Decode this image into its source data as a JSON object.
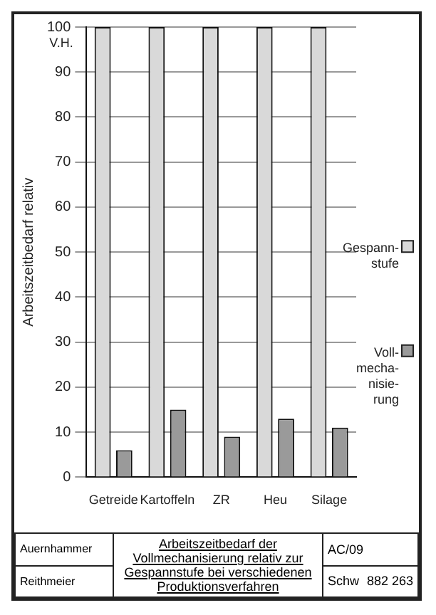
{
  "chart_data": {
    "type": "bar",
    "title": "Arbeitszeitbedarf der Vollmechanisierung relativ zur Gespannstufe bei verschiedenen Produktionsverfahren",
    "ylabel": "Arbeitszeitbedarf relativ",
    "categories": [
      "Getreide",
      "Kartoffeln",
      "ZR",
      "Heu",
      "Silage"
    ],
    "series": [
      {
        "name": "Gespann-\nstufe",
        "color": "#d9d9d9",
        "values": [
          100,
          100,
          100,
          100,
          100
        ]
      },
      {
        "name": "Voll-\nmecha-\nnisie-\nrung",
        "color": "#9a9a9a",
        "values": [
          6,
          15,
          9,
          13,
          11
        ]
      }
    ],
    "ylim": [
      0,
      100
    ],
    "yticks": [
      0,
      10,
      20,
      30,
      40,
      50,
      60,
      70,
      80,
      90,
      100
    ],
    "grid": "y",
    "legend": "right",
    "annotations": [
      "V.H.",
      "Auernhammer",
      "Reithmeier",
      "AC/09",
      "Schw",
      "882 263"
    ]
  }
}
